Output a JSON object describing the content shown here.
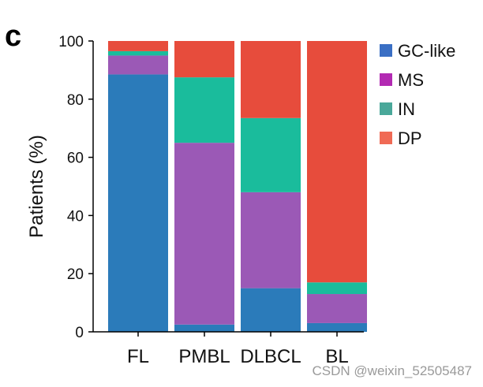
{
  "panel_letter": "c",
  "watermark": "CSDN @weixin_52505487",
  "chart_data": {
    "type": "bar",
    "stacked": true,
    "categories": [
      "FL",
      "PMBL",
      "DLBCL",
      "BL"
    ],
    "ylabel": "Patients (%)",
    "ylim": [
      0,
      100
    ],
    "yticks": [
      0,
      20,
      40,
      60,
      80,
      100
    ],
    "legend_position": "top-right",
    "series": [
      {
        "name": "GC-like",
        "values": [
          88.5,
          2.5,
          15,
          3
        ],
        "color": "#2b7bba"
      },
      {
        "name": "MS",
        "values": [
          6.5,
          62.5,
          33,
          10
        ],
        "color": "#9b59b6"
      },
      {
        "name": "IN",
        "values": [
          1.5,
          22.5,
          25.5,
          4
        ],
        "color": "#1abc9c"
      },
      {
        "name": "DP",
        "values": [
          3.5,
          12.5,
          26.5,
          83
        ],
        "color": "#e74c3c"
      }
    ],
    "legend_colors": [
      "#3a6fc4",
      "#b22ab2",
      "#4aa89a",
      "#f06a55"
    ]
  }
}
